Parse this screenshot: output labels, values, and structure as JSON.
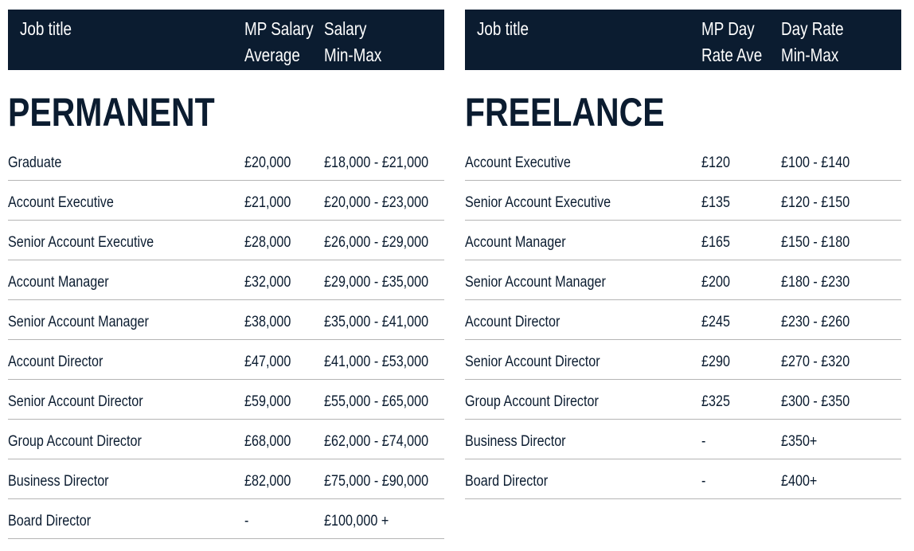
{
  "tables": [
    {
      "header": [
        "Job title",
        "MP Salary\nAverage",
        "Salary\nMin-Max"
      ],
      "section": "PERMANENT",
      "rows": [
        [
          "Graduate",
          "£20,000",
          "£18,000 - £21,000"
        ],
        [
          "Account Executive",
          "£21,000",
          "£20,000 - £23,000"
        ],
        [
          "Senior Account Executive",
          "£28,000",
          "£26,000 - £29,000"
        ],
        [
          "Account Manager",
          "£32,000",
          "£29,000 - £35,000"
        ],
        [
          "Senior Account Manager",
          "£38,000",
          "£35,000 - £41,000"
        ],
        [
          "Account Director",
          "£47,000",
          "£41,000 - £53,000"
        ],
        [
          "Senior Account Director",
          "£59,000",
          "£55,000 - £65,000"
        ],
        [
          "Group Account Director",
          "£68,000",
          "£62,000 - £74,000"
        ],
        [
          "Business Director",
          "£82,000",
          "£75,000 - £90,000"
        ],
        [
          "Board Director",
          "-",
          "£100,000 +"
        ]
      ]
    },
    {
      "header": [
        "Job title",
        "MP Day\nRate Ave",
        "Day Rate\nMin-Max"
      ],
      "section": "FREELANCE",
      "rows": [
        [
          "Account Executive",
          "£120",
          "£100 - £140"
        ],
        [
          "Senior Account Executive",
          "£135",
          "£120 - £150"
        ],
        [
          "Account Manager",
          "£165",
          "£150 - £180"
        ],
        [
          "Senior Account Manager",
          "£200",
          "£180 - £230"
        ],
        [
          "Account Director",
          "£245",
          "£230 - £260"
        ],
        [
          "Senior Account Director",
          "£290",
          "£270 - £320"
        ],
        [
          "Group Account Director",
          "£325",
          "£300 - £350"
        ],
        [
          "Business Director",
          "-",
          "£350+"
        ],
        [
          "Board Director",
          "-",
          "£400+"
        ]
      ]
    }
  ]
}
